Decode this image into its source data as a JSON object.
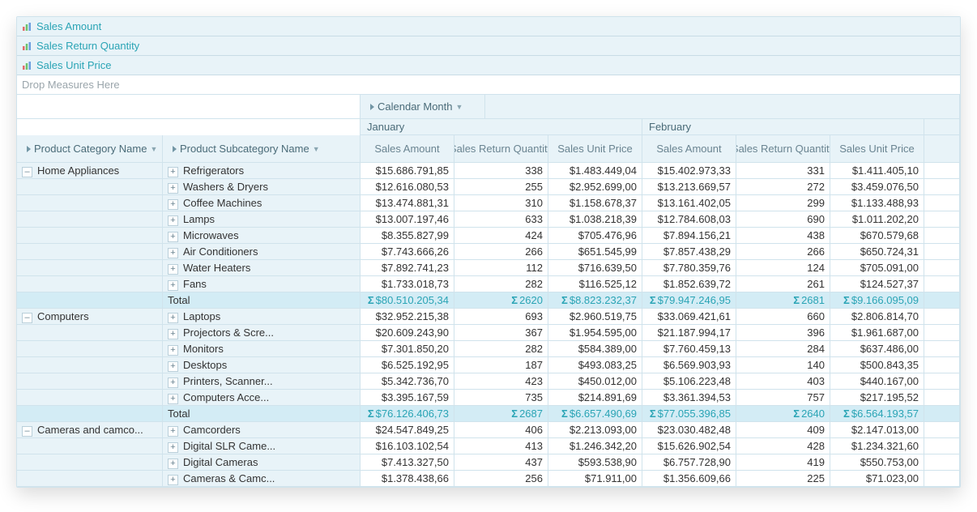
{
  "measures": [
    {
      "label": "Sales Amount"
    },
    {
      "label": "Sales Return Quantity"
    },
    {
      "label": "Sales Unit Price"
    }
  ],
  "drop_hint": "Drop Measures Here",
  "row_dims": [
    "Product Category Name",
    "Product Subcategory Name"
  ],
  "col_dim": "Calendar Month",
  "months": [
    "January",
    "February"
  ],
  "value_cols": [
    "Sales Amount",
    "Sales Return Quantity",
    "Sales Unit Price"
  ],
  "groups": [
    {
      "category": "Home Appliances",
      "rows": [
        {
          "sub": "Refrigerators",
          "vals": [
            "$15.686.791,85",
            "338",
            "$1.483.449,04",
            "$15.402.973,33",
            "331",
            "$1.411.405,10"
          ]
        },
        {
          "sub": "Washers & Dryers",
          "vals": [
            "$12.616.080,53",
            "255",
            "$2.952.699,00",
            "$13.213.669,57",
            "272",
            "$3.459.076,50"
          ]
        },
        {
          "sub": "Coffee Machines",
          "vals": [
            "$13.474.881,31",
            "310",
            "$1.158.678,37",
            "$13.161.402,05",
            "299",
            "$1.133.488,93"
          ]
        },
        {
          "sub": "Lamps",
          "vals": [
            "$13.007.197,46",
            "633",
            "$1.038.218,39",
            "$12.784.608,03",
            "690",
            "$1.011.202,20"
          ]
        },
        {
          "sub": "Microwaves",
          "vals": [
            "$8.355.827,99",
            "424",
            "$705.476,96",
            "$7.894.156,21",
            "438",
            "$670.579,68"
          ]
        },
        {
          "sub": "Air Conditioners",
          "vals": [
            "$7.743.666,26",
            "266",
            "$651.545,99",
            "$7.857.438,29",
            "266",
            "$650.724,31"
          ]
        },
        {
          "sub": "Water Heaters",
          "vals": [
            "$7.892.741,23",
            "112",
            "$716.639,50",
            "$7.780.359,76",
            "124",
            "$705.091,00"
          ]
        },
        {
          "sub": "Fans",
          "vals": [
            "$1.733.018,73",
            "282",
            "$116.525,12",
            "$1.852.639,72",
            "261",
            "$124.527,37"
          ]
        }
      ],
      "total": [
        "$80.510.205,34",
        "2620",
        "$8.823.232,37",
        "$79.947.246,95",
        "2681",
        "$9.166.095,09"
      ]
    },
    {
      "category": "Computers",
      "rows": [
        {
          "sub": "Laptops",
          "vals": [
            "$32.952.215,38",
            "693",
            "$2.960.519,75",
            "$33.069.421,61",
            "660",
            "$2.806.814,70"
          ]
        },
        {
          "sub": "Projectors & Scre...",
          "vals": [
            "$20.609.243,90",
            "367",
            "$1.954.595,00",
            "$21.187.994,17",
            "396",
            "$1.961.687,00"
          ]
        },
        {
          "sub": "Monitors",
          "vals": [
            "$7.301.850,20",
            "282",
            "$584.389,00",
            "$7.760.459,13",
            "284",
            "$637.486,00"
          ]
        },
        {
          "sub": "Desktops",
          "vals": [
            "$6.525.192,95",
            "187",
            "$493.083,25",
            "$6.569.903,93",
            "140",
            "$500.843,35"
          ]
        },
        {
          "sub": "Printers, Scanner...",
          "vals": [
            "$5.342.736,70",
            "423",
            "$450.012,00",
            "$5.106.223,48",
            "403",
            "$440.167,00"
          ]
        },
        {
          "sub": "Computers Acce...",
          "vals": [
            "$3.395.167,59",
            "735",
            "$214.891,69",
            "$3.361.394,53",
            "757",
            "$217.195,52"
          ]
        }
      ],
      "total": [
        "$76.126.406,73",
        "2687",
        "$6.657.490,69",
        "$77.055.396,85",
        "2640",
        "$6.564.193,57"
      ]
    },
    {
      "category": "Cameras and camco...",
      "rows": [
        {
          "sub": "Camcorders",
          "vals": [
            "$24.547.849,25",
            "406",
            "$2.213.093,00",
            "$23.030.482,48",
            "409",
            "$2.147.013,00"
          ]
        },
        {
          "sub": "Digital SLR Came...",
          "vals": [
            "$16.103.102,54",
            "413",
            "$1.246.342,20",
            "$15.626.902,54",
            "428",
            "$1.234.321,60"
          ]
        },
        {
          "sub": "Digital Cameras",
          "vals": [
            "$7.413.327,50",
            "437",
            "$593.538,90",
            "$6.757.728,90",
            "419",
            "$550.753,00"
          ]
        },
        {
          "sub": "Cameras & Camc...",
          "vals": [
            "$1.378.438,66",
            "256",
            "$71.911,00",
            "$1.356.609,66",
            "225",
            "$71.023,00"
          ]
        }
      ]
    }
  ],
  "total_label": "Total"
}
